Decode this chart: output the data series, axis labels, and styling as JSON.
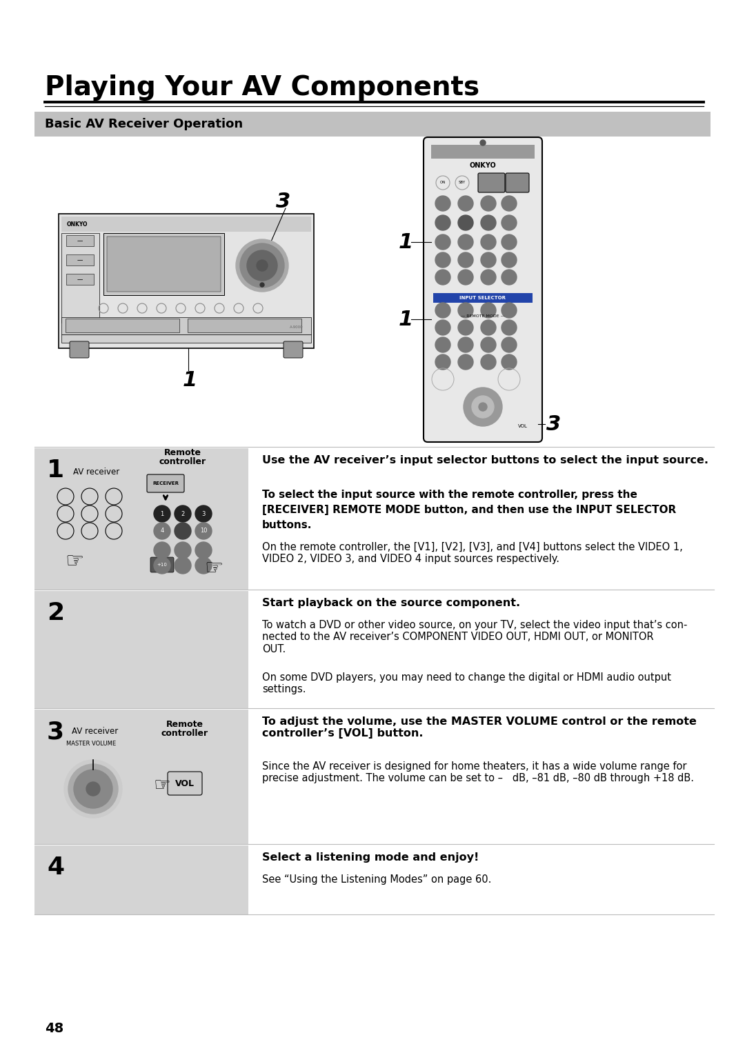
{
  "title": "Playing Your AV Components",
  "subtitle": "Basic AV Receiver Operation",
  "background_color": "#ffffff",
  "subtitle_bg_color": "#c0c0c0",
  "step_bg_color": "#d4d4d4",
  "page_number": "48",
  "step1_header": "Use the AV receiver’s input selector buttons to select the input source.",
  "step1_bold1": "To select the input source with the remote controller, press the",
  "step1_bold2": "[RECEIVER] REMOTE MODE button, and then use the INPUT SELECTOR",
  "step1_bold3": "buttons.",
  "step1_body": "On the remote controller, the [V1], [V2], [V3], and [V4] buttons select the VIDEO 1,\nVIDEO 2, VIDEO 3, and VIDEO 4 input sources respectively.",
  "step2_header": "Start playback on the source component.",
  "step2_body1": "To watch a DVD or other video source, on your TV, select the video input that’s con-\nnected to the AV receiver’s COMPONENT VIDEO OUT, HDMI OUT, or MONITOR\nOUT.",
  "step2_body2": "On some DVD players, you may need to change the digital or HDMI audio output\nsettings.",
  "step3_header": "To adjust the volume, use the MASTER VOLUME control or the remote\ncontroller’s [VOL] button.",
  "step3_body": "Since the AV receiver is designed for home theaters, it has a wide volume range for\nprecise adjustment. The volume can be set to –   dB, –81 dB, –80 dB through +18 dB.",
  "step4_header": "Select a listening mode and enjoy!",
  "step4_body": "See “Using the Listening Modes” on page 60.",
  "label_av_receiver": "AV receiver",
  "label_remote": "Remote\ncontroller"
}
